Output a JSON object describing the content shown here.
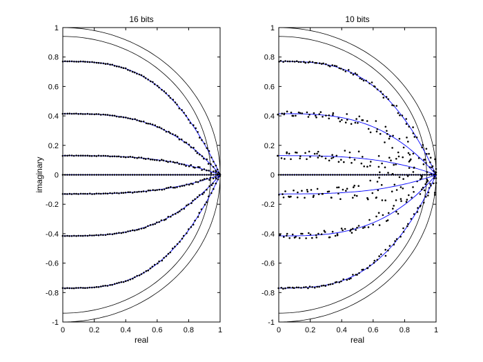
{
  "chart_data": [
    {
      "type": "scatter",
      "title": "16 bits",
      "xlabel": "real",
      "ylabel": "imaginary",
      "xlim": [
        0,
        1
      ],
      "ylim": [
        -1,
        1
      ],
      "xticks": [
        "0",
        "0.2",
        "0.4",
        "0.6",
        "0.8",
        "1"
      ],
      "yticks": [
        "-1",
        "-0.8",
        "-0.6",
        "-0.4",
        "-0.2",
        "0",
        "0.2",
        "0.4",
        "0.6",
        "0.8",
        "1"
      ],
      "grid": false,
      "legend": "none",
      "circles": [
        {
          "name": "unit circle",
          "radius": 1
        },
        {
          "name": "inner circle",
          "radius": 0.94
        }
      ],
      "series": [
        {
          "line_color": "#0000ff",
          "marker": "dot",
          "start_imaginary": 0.77,
          "quantization_jitter": 0.004
        },
        {
          "line_color": "#0000ff",
          "marker": "dot",
          "start_imaginary": 0.415,
          "quantization_jitter": 0.004
        },
        {
          "line_color": "#0000ff",
          "marker": "dot",
          "start_imaginary": 0.13,
          "quantization_jitter": 0.004
        },
        {
          "line_color": "#0000ff",
          "marker": "dot",
          "start_imaginary": 0,
          "quantization_jitter": 0
        },
        {
          "line_color": "#0000ff",
          "marker": "dot",
          "start_imaginary": -0.13,
          "quantization_jitter": 0.004
        },
        {
          "line_color": "#0000ff",
          "marker": "dot",
          "start_imaginary": -0.415,
          "quantization_jitter": 0.004
        },
        {
          "line_color": "#0000ff",
          "marker": "dot",
          "start_imaginary": -0.77,
          "quantization_jitter": 0.004
        }
      ]
    },
    {
      "type": "scatter",
      "title": "10 bits",
      "xlabel": "real",
      "ylabel": "",
      "xlim": [
        0,
        1
      ],
      "ylim": [
        -1,
        1
      ],
      "xticks": [
        "0",
        "0.2",
        "0.4",
        "0.6",
        "0.8",
        "1"
      ],
      "yticks": [
        "-1",
        "-0.8",
        "-0.6",
        "-0.4",
        "-0.2",
        "0",
        "0.2",
        "0.4",
        "0.6",
        "0.8",
        "1"
      ],
      "grid": false,
      "legend": "none",
      "circles": [
        {
          "name": "unit circle",
          "radius": 1
        },
        {
          "name": "inner circle",
          "radius": 0.94
        }
      ],
      "series": [
        {
          "line_color": "#0000ff",
          "marker": "dot",
          "start_imaginary": 0.77,
          "quantization_jitter": 0.012
        },
        {
          "line_color": "#0000ff",
          "marker": "dot",
          "start_imaginary": 0.415,
          "quantization_jitter": 0.04
        },
        {
          "line_color": "#0000ff",
          "marker": "dot",
          "start_imaginary": 0.13,
          "quantization_jitter": 0.06
        },
        {
          "line_color": "#0000ff",
          "marker": "dot",
          "start_imaginary": 0,
          "quantization_jitter": 0
        },
        {
          "line_color": "#0000ff",
          "marker": "dot",
          "start_imaginary": -0.13,
          "quantization_jitter": 0.06
        },
        {
          "line_color": "#0000ff",
          "marker": "dot",
          "start_imaginary": -0.415,
          "quantization_jitter": 0.04
        },
        {
          "line_color": "#0000ff",
          "marker": "dot",
          "start_imaginary": -0.77,
          "quantization_jitter": 0.012
        }
      ]
    }
  ]
}
